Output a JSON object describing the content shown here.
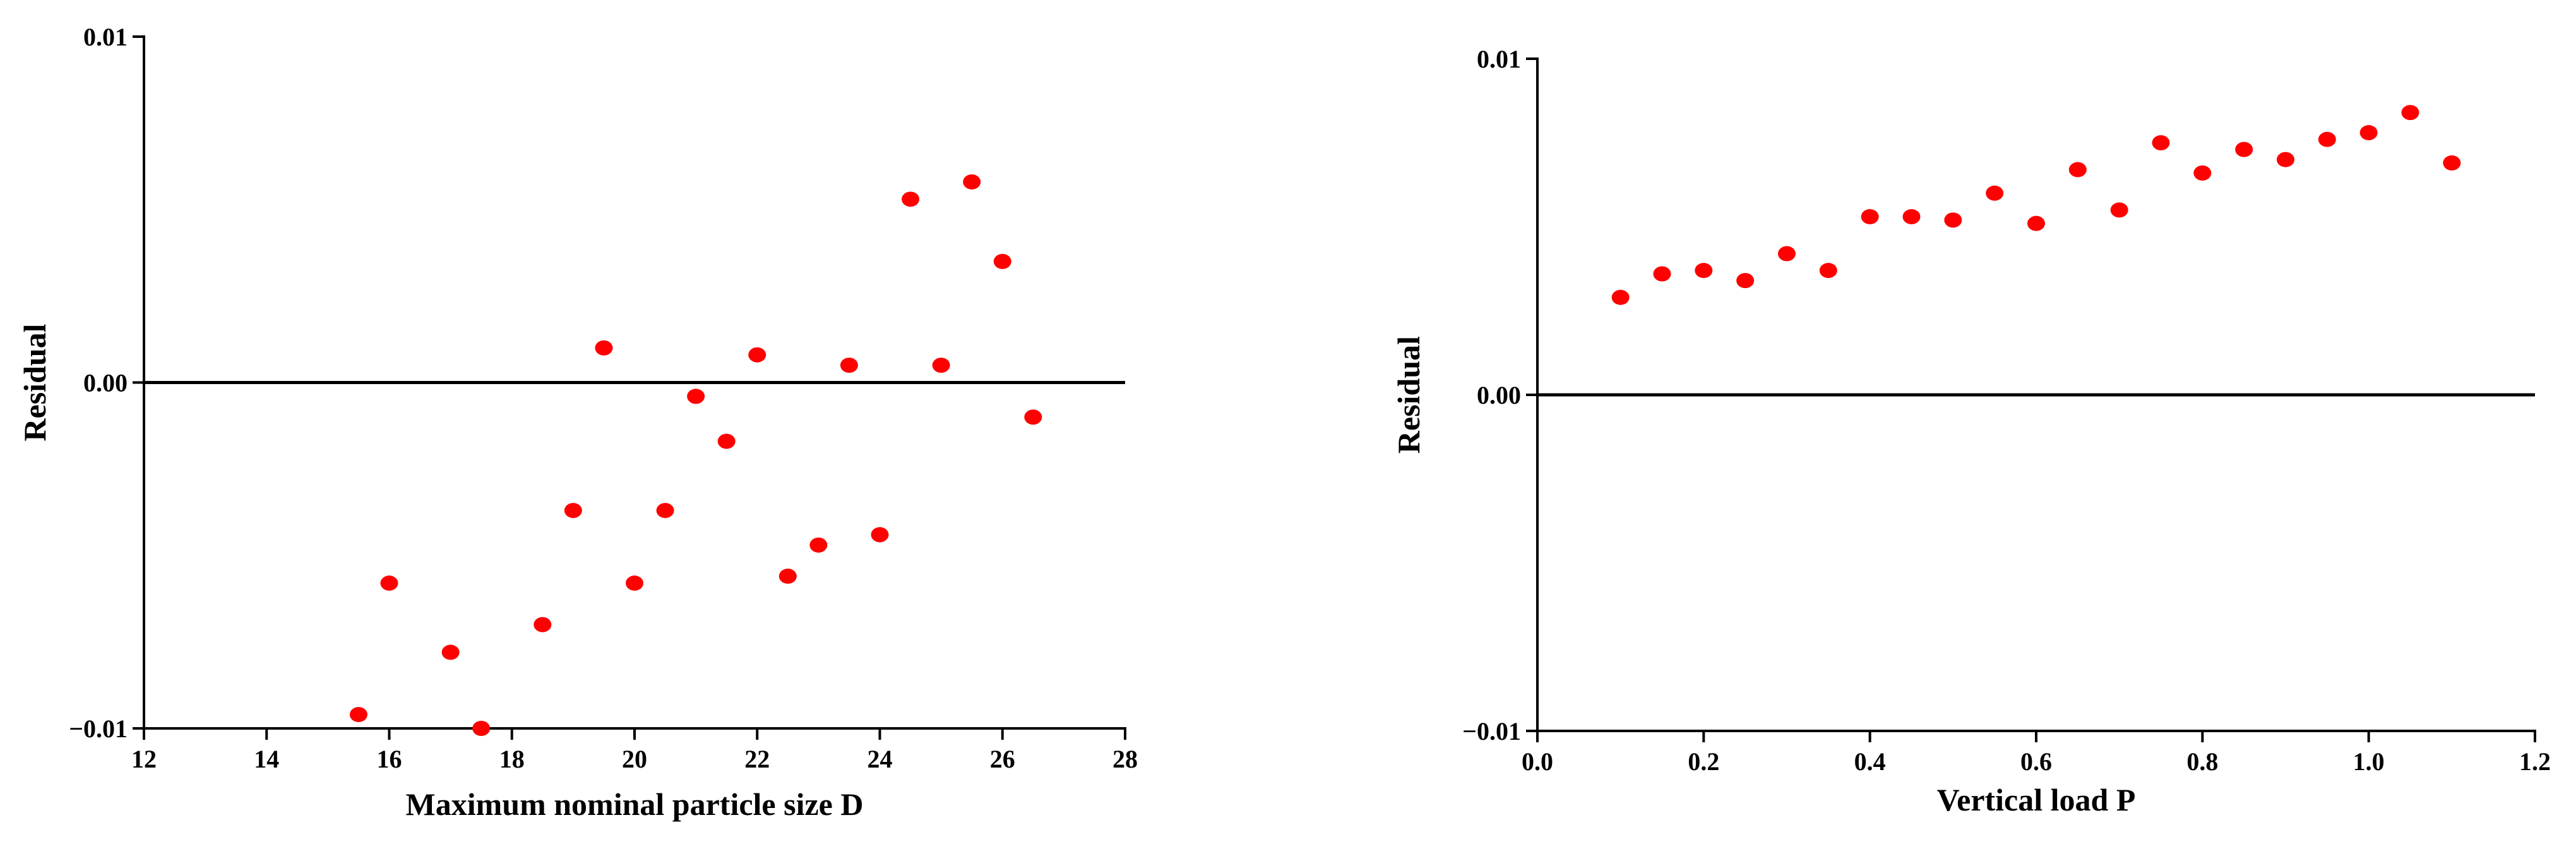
{
  "chart_data": [
    {
      "type": "scatter",
      "title": "",
      "xlabel": "Maximum nominal particle size D",
      "ylabel": "Residual",
      "xlim": [
        12,
        28
      ],
      "ylim": [
        -0.01,
        0.01
      ],
      "xticks": [
        12,
        14,
        16,
        18,
        20,
        22,
        24,
        26,
        28
      ],
      "xtick_labels": [
        "12",
        "14",
        "16",
        "18",
        "20",
        "22",
        "24",
        "26",
        "28"
      ],
      "yticks": [
        -0.01,
        0.0,
        0.01
      ],
      "ytick_labels": [
        "−0.01",
        "0.00",
        "0.01"
      ],
      "reference_line_y": 0,
      "grid": false,
      "marker_color": "#ff0000",
      "series": [
        {
          "points": [
            {
              "x": 15.5,
              "y": -0.0096
            },
            {
              "x": 16.0,
              "y": -0.0058
            },
            {
              "x": 17.0,
              "y": -0.0078
            },
            {
              "x": 17.5,
              "y": -0.01
            },
            {
              "x": 18.5,
              "y": -0.007
            },
            {
              "x": 19.0,
              "y": -0.0037
            },
            {
              "x": 19.5,
              "y": 0.001
            },
            {
              "x": 20.0,
              "y": -0.0058
            },
            {
              "x": 20.5,
              "y": -0.0037
            },
            {
              "x": 21.0,
              "y": -0.0004
            },
            {
              "x": 21.5,
              "y": -0.0017
            },
            {
              "x": 22.0,
              "y": 0.0008
            },
            {
              "x": 22.5,
              "y": -0.0056
            },
            {
              "x": 23.0,
              "y": -0.0047
            },
            {
              "x": 23.5,
              "y": 0.0005
            },
            {
              "x": 24.0,
              "y": -0.0044
            },
            {
              "x": 24.5,
              "y": 0.0053
            },
            {
              "x": 25.0,
              "y": 0.0005
            },
            {
              "x": 25.5,
              "y": 0.0058
            },
            {
              "x": 26.0,
              "y": 0.0035
            },
            {
              "x": 26.5,
              "y": -0.001
            }
          ]
        }
      ]
    },
    {
      "type": "scatter",
      "title": "",
      "xlabel": "Vertical load P",
      "ylabel": "Residual",
      "xlim": [
        0.0,
        1.2
      ],
      "ylim": [
        -0.01,
        0.01
      ],
      "xticks": [
        0.0,
        0.2,
        0.4,
        0.6,
        0.8,
        1.0,
        1.2
      ],
      "xtick_labels": [
        "0.0",
        "0.2",
        "0.4",
        "0.6",
        "0.8",
        "1.0",
        "1.2"
      ],
      "yticks": [
        -0.01,
        0.0,
        0.01
      ],
      "ytick_labels": [
        "−0.01",
        "0.00",
        "0.01"
      ],
      "reference_line_y": 0,
      "grid": false,
      "marker_color": "#ff0000",
      "series": [
        {
          "points": [
            {
              "x": 0.1,
              "y": 0.0029
            },
            {
              "x": 0.15,
              "y": 0.0036
            },
            {
              "x": 0.2,
              "y": 0.0037
            },
            {
              "x": 0.25,
              "y": 0.0034
            },
            {
              "x": 0.3,
              "y": 0.0042
            },
            {
              "x": 0.35,
              "y": 0.0037
            },
            {
              "x": 0.4,
              "y": 0.0053
            },
            {
              "x": 0.45,
              "y": 0.0053
            },
            {
              "x": 0.5,
              "y": 0.0052
            },
            {
              "x": 0.55,
              "y": 0.006
            },
            {
              "x": 0.6,
              "y": 0.0051
            },
            {
              "x": 0.65,
              "y": 0.0067
            },
            {
              "x": 0.7,
              "y": 0.0055
            },
            {
              "x": 0.75,
              "y": 0.0075
            },
            {
              "x": 0.8,
              "y": 0.0066
            },
            {
              "x": 0.85,
              "y": 0.0073
            },
            {
              "x": 0.9,
              "y": 0.007
            },
            {
              "x": 0.95,
              "y": 0.0076
            },
            {
              "x": 1.0,
              "y": 0.0078
            },
            {
              "x": 1.05,
              "y": 0.0084
            },
            {
              "x": 1.1,
              "y": 0.0069
            }
          ]
        }
      ]
    }
  ]
}
